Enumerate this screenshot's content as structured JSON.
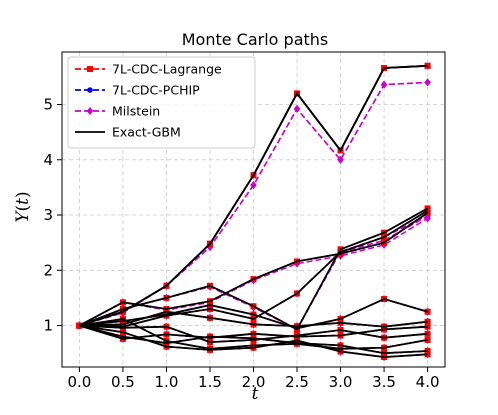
{
  "chart_data": {
    "type": "line",
    "title": "Monte Carlo paths",
    "xlabel": "t",
    "ylabel": "Y(t)",
    "xlim": [
      -0.2,
      4.2
    ],
    "ylim": [
      0.25,
      5.95
    ],
    "x_ticks": [
      0.0,
      0.5,
      1.0,
      1.5,
      2.0,
      2.5,
      3.0,
      3.5,
      4.0
    ],
    "x_tick_labels": [
      "0.0",
      "0.5",
      "1.0",
      "1.5",
      "2.0",
      "2.5",
      "3.0",
      "3.5",
      "4.0"
    ],
    "y_ticks": [
      1,
      2,
      3,
      4,
      5
    ],
    "y_tick_labels": [
      "1",
      "2",
      "3",
      "4",
      "5"
    ],
    "grid": true,
    "legend_position": "top-left",
    "x": [
      0.0,
      0.5,
      1.0,
      1.5,
      2.0,
      2.5,
      3.0,
      3.5,
      4.0
    ],
    "paths": [
      [
        1.0,
        1.25,
        1.72,
        2.48,
        3.72,
        5.2,
        4.17,
        5.66,
        5.7
      ],
      [
        1.0,
        1.25,
        1.72,
        2.48,
        3.72,
        5.2,
        4.17,
        5.66,
        5.7
      ],
      [
        1.0,
        1.3,
        1.5,
        1.72,
        1.35,
        0.93,
        2.38,
        2.68,
        3.12
      ],
      [
        1.0,
        1.42,
        1.3,
        1.44,
        1.84,
        2.16,
        2.3,
        2.5,
        3.04
      ],
      [
        1.0,
        0.98,
        1.18,
        1.3,
        1.12,
        1.58,
        2.33,
        2.6,
        3.08
      ],
      [
        1.0,
        1.08,
        1.2,
        1.37,
        1.2,
        0.95,
        1.12,
        1.48,
        1.25
      ],
      [
        1.0,
        1.02,
        1.25,
        1.14,
        1.02,
        0.99,
        1.05,
        0.98,
        1.07
      ],
      [
        1.0,
        0.76,
        0.84,
        0.78,
        0.85,
        0.8,
        0.82,
        0.93,
        0.98
      ],
      [
        1.0,
        0.96,
        0.98,
        0.7,
        0.74,
        0.82,
        0.92,
        0.78,
        0.85
      ],
      [
        1.0,
        1.12,
        0.72,
        0.58,
        0.64,
        0.67,
        0.58,
        0.6,
        0.74
      ],
      [
        1.0,
        0.88,
        0.62,
        0.56,
        0.6,
        0.73,
        0.53,
        0.43,
        0.48
      ],
      [
        1.0,
        0.8,
        0.68,
        0.8,
        0.77,
        0.68,
        0.64,
        0.5,
        0.54
      ]
    ],
    "milstein_offsets": [
      [
        0,
        -0.02,
        0,
        -0.06,
        -0.18,
        -0.28,
        -0.17,
        -0.3,
        -0.3
      ],
      [
        0,
        -0.02,
        0,
        -0.06,
        -0.18,
        -0.28,
        -0.17,
        -0.3,
        -0.3
      ],
      [
        0,
        0,
        0.0,
        -0.02,
        -0.02,
        0,
        -0.04,
        -0.08,
        -0.12
      ],
      [
        0,
        0,
        -0.02,
        -0.02,
        -0.02,
        -0.04,
        -0.04,
        -0.04,
        -0.1
      ],
      [
        0,
        0,
        0,
        0,
        0,
        0,
        0,
        -0.06,
        -0.1
      ],
      [
        0,
        0,
        0,
        0,
        0,
        0,
        0,
        0,
        0
      ],
      [
        0,
        0,
        0,
        0,
        0,
        0,
        0,
        0,
        0
      ],
      [
        0,
        0,
        0,
        0,
        0,
        0,
        0,
        0,
        0
      ],
      [
        0,
        0,
        0,
        0,
        0,
        0,
        0,
        0,
        0
      ],
      [
        0,
        0,
        0,
        0,
        0,
        0,
        0,
        0,
        0
      ],
      [
        0,
        0,
        0,
        0,
        0,
        0,
        0,
        0,
        0
      ],
      [
        0,
        0,
        0,
        0,
        0,
        0,
        0,
        0,
        0
      ]
    ],
    "series": [
      {
        "name": "7L-CDC-Lagrange",
        "color": "#ff0000",
        "dash": "dashed",
        "marker": "square"
      },
      {
        "name": "7L-CDC-PCHIP",
        "color": "#0000ff",
        "dash": "dashed",
        "marker": "circle"
      },
      {
        "name": "Milstein",
        "color": "#cc00cc",
        "dash": "dashed",
        "marker": "diamond"
      },
      {
        "name": "Exact-GBM",
        "color": "#000000",
        "dash": "solid",
        "marker": "none"
      }
    ]
  }
}
